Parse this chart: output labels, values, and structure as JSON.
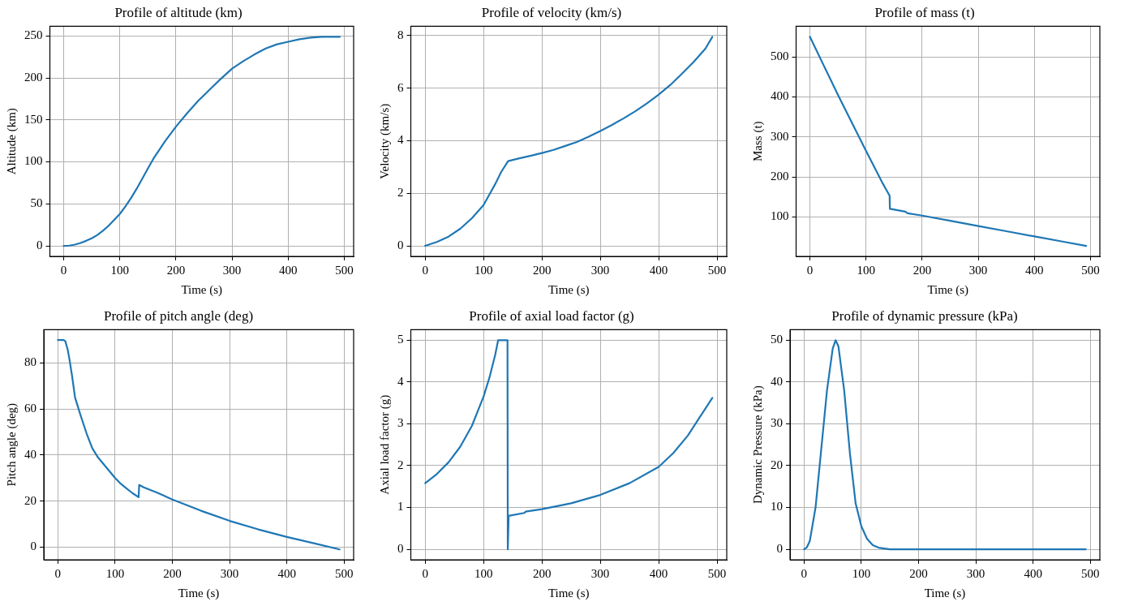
{
  "chart_data": [
    {
      "type": "line",
      "title": "Profile of altitude (km)",
      "xlabel": "Time (s)",
      "ylabel": "Altitude (km)",
      "grid": true,
      "legend": false,
      "xlim": [
        -24.6,
        516.6
      ],
      "xticks": [
        0,
        100,
        200,
        300,
        400,
        500
      ],
      "ylim": [
        -12.5,
        261.5
      ],
      "yticks": [
        0,
        50,
        100,
        150,
        200,
        250
      ],
      "series": [
        {
          "color": "#1f77b4",
          "x": [
            0,
            10,
            20,
            30,
            40,
            50,
            60,
            70,
            80,
            90,
            100,
            110,
            120,
            130,
            140,
            150,
            160,
            170,
            180,
            190,
            200,
            220,
            240,
            260,
            280,
            300,
            320,
            340,
            360,
            380,
            400,
            420,
            440,
            460,
            480,
            492
          ],
          "values": [
            0,
            0.3,
            1.5,
            3.5,
            6,
            9,
            13,
            18,
            24,
            31,
            38,
            47,
            57,
            68,
            80,
            92,
            104,
            114,
            124,
            133,
            142,
            158,
            173,
            186,
            199,
            211,
            220,
            228,
            235,
            240,
            243,
            246,
            248,
            249,
            249,
            249
          ]
        }
      ]
    },
    {
      "type": "line",
      "title": "Profile of velocity (km/s)",
      "xlabel": "Time (s)",
      "ylabel": "Velocity (km/s)",
      "grid": true,
      "legend": false,
      "xlim": [
        -24.6,
        516.6
      ],
      "xticks": [
        0,
        100,
        200,
        300,
        400,
        500
      ],
      "ylim": [
        -0.4,
        8.35
      ],
      "yticks": [
        0,
        2,
        4,
        6,
        8
      ],
      "series": [
        {
          "color": "#1f77b4",
          "x": [
            0,
            20,
            40,
            60,
            80,
            100,
            110,
            120,
            130,
            142,
            160,
            180,
            200,
            220,
            240,
            260,
            280,
            300,
            320,
            340,
            360,
            380,
            400,
            420,
            440,
            460,
            480,
            492
          ],
          "values": [
            0,
            0.15,
            0.35,
            0.65,
            1.05,
            1.55,
            1.95,
            2.35,
            2.8,
            3.22,
            3.32,
            3.42,
            3.53,
            3.65,
            3.8,
            3.95,
            4.15,
            4.37,
            4.6,
            4.85,
            5.12,
            5.42,
            5.75,
            6.12,
            6.55,
            7.0,
            7.5,
            7.95
          ]
        }
      ]
    },
    {
      "type": "line",
      "title": "Profile of mass (t)",
      "xlabel": "Time (s)",
      "ylabel": "Mass (t)",
      "grid": true,
      "legend": false,
      "xlim": [
        -24.6,
        516.6
      ],
      "xticks": [
        0,
        100,
        200,
        300,
        400,
        500
      ],
      "ylim": [
        1,
        577
      ],
      "yticks": [
        100,
        200,
        300,
        400,
        500
      ],
      "series": [
        {
          "color": "#1f77b4",
          "x": [
            0,
            50,
            100,
            120,
            130,
            140,
            142,
            142.5,
            170,
            174,
            200,
            250,
            300,
            350,
            400,
            450,
            492
          ],
          "values": [
            551,
            405,
            265,
            210,
            183,
            158,
            153,
            120,
            113,
            109,
            103,
            90,
            77,
            64,
            51,
            38,
            27
          ]
        }
      ]
    },
    {
      "type": "line",
      "title": "Profile of pitch angle (deg)",
      "xlabel": "Time (s)",
      "ylabel": "Pitch angle (deg)",
      "grid": true,
      "legend": false,
      "xlim": [
        -24.6,
        516.6
      ],
      "xticks": [
        0,
        100,
        200,
        300,
        400,
        500
      ],
      "ylim": [
        -5.5,
        94.5
      ],
      "yticks": [
        0,
        20,
        40,
        60,
        80
      ],
      "series": [
        {
          "color": "#1f77b4",
          "x": [
            0,
            10,
            13,
            17,
            20,
            25,
            30,
            35,
            40,
            50,
            60,
            70,
            80,
            90,
            100,
            110,
            120,
            130,
            141,
            142,
            150,
            175,
            200,
            250,
            300,
            350,
            400,
            450,
            492
          ],
          "values": [
            90,
            90,
            89.5,
            86,
            82,
            74,
            65,
            61,
            57,
            49.5,
            43,
            39,
            36,
            33,
            30,
            27.5,
            25.5,
            23.5,
            21.7,
            27,
            26,
            23.5,
            20.7,
            15.8,
            11.4,
            7.7,
            4.4,
            1.5,
            -1
          ]
        }
      ]
    },
    {
      "type": "line",
      "title": "Profile of axial load factor (g)",
      "xlabel": "Time (s)",
      "ylabel": "Axial load factor (g)",
      "grid": true,
      "legend": false,
      "xlim": [
        -24.6,
        516.6
      ],
      "xticks": [
        0,
        100,
        200,
        300,
        400,
        500
      ],
      "ylim": [
        -0.25,
        5.25
      ],
      "yticks": [
        0,
        1,
        2,
        3,
        4,
        5
      ],
      "series": [
        {
          "color": "#1f77b4",
          "x": [
            0,
            20,
            40,
            60,
            80,
            100,
            110,
            120,
            125,
            141,
            141.5,
            143,
            170,
            172,
            200,
            250,
            300,
            350,
            400,
            425,
            450,
            470,
            492
          ],
          "values": [
            1.58,
            1.8,
            2.08,
            2.45,
            2.95,
            3.65,
            4.1,
            4.65,
            5,
            5,
            0,
            0.8,
            0.87,
            0.9,
            0.96,
            1.1,
            1.3,
            1.58,
            1.97,
            2.3,
            2.72,
            3.15,
            3.62
          ]
        }
      ]
    },
    {
      "type": "line",
      "title": "Profile of dynamic pressure (kPa)",
      "xlabel": "Time (s)",
      "ylabel": "Dynamic Pressure (kPa)",
      "grid": true,
      "legend": false,
      "xlim": [
        -24.6,
        516.6
      ],
      "xticks": [
        0,
        100,
        200,
        300,
        400,
        500
      ],
      "ylim": [
        -2.5,
        52.5
      ],
      "yticks": [
        0,
        10,
        20,
        30,
        40,
        50
      ],
      "series": [
        {
          "color": "#1f77b4",
          "x": [
            0,
            5,
            10,
            20,
            30,
            40,
            50,
            55,
            60,
            70,
            80,
            90,
            100,
            110,
            120,
            130,
            150,
            200,
            300,
            400,
            492
          ],
          "values": [
            0,
            0.5,
            2,
            10,
            24,
            38,
            48,
            50,
            48.5,
            38,
            23,
            11,
            5.5,
            2.5,
            1,
            0.4,
            0,
            0,
            0,
            0,
            0
          ]
        }
      ]
    }
  ]
}
